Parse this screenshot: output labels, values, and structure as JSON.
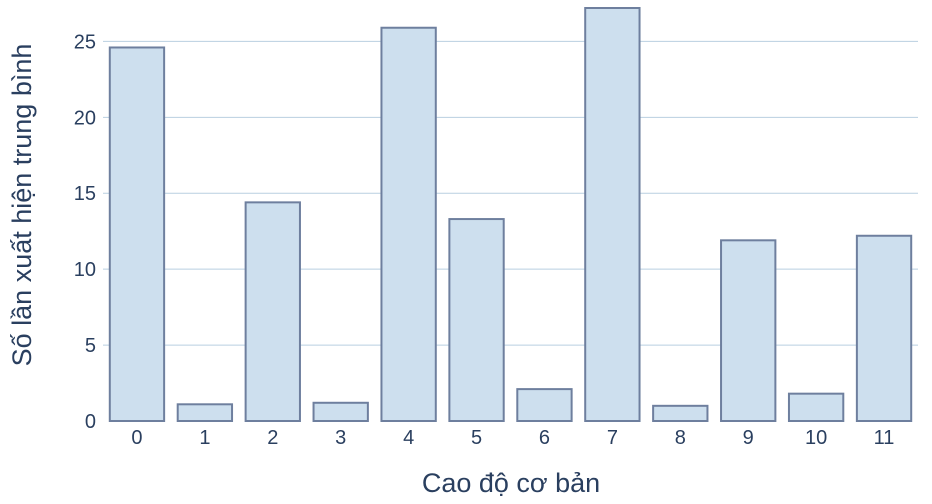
{
  "chart_data": {
    "type": "bar",
    "categories": [
      "0",
      "1",
      "2",
      "3",
      "4",
      "5",
      "6",
      "7",
      "8",
      "9",
      "10",
      "11"
    ],
    "values": [
      24.6,
      1.1,
      14.4,
      1.2,
      25.9,
      13.3,
      2.1,
      27.2,
      1.0,
      11.9,
      1.8,
      12.2
    ],
    "xlabel": "Cao độ cơ bản",
    "ylabel": "Số lần xuất hiện trung bình",
    "yticks": [
      0,
      5,
      10,
      15,
      20,
      25
    ],
    "ylim": [
      0,
      27.2
    ],
    "grid": true,
    "colors": {
      "bar_fill": "#cddfee",
      "bar_stroke": "#6e7f9e",
      "grid": "#b9cfe0",
      "text": "#2a3f5f"
    }
  }
}
